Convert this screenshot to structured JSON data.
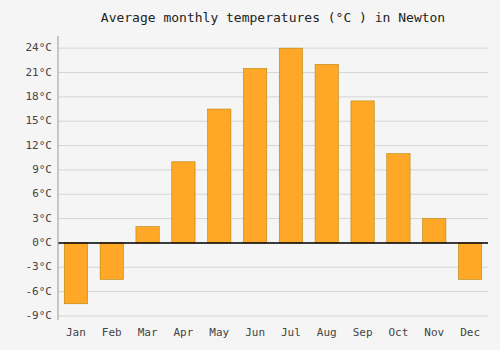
{
  "chart_data": {
    "type": "bar",
    "title": "Average monthly temperatures (°C ) in Newton",
    "categories": [
      "Jan",
      "Feb",
      "Mar",
      "Apr",
      "May",
      "Jun",
      "Jul",
      "Aug",
      "Sep",
      "Oct",
      "Nov",
      "Dec"
    ],
    "values": [
      -7.5,
      -4.5,
      2.0,
      10.0,
      16.5,
      21.5,
      24.0,
      22.0,
      17.5,
      11.0,
      3.0,
      -4.5
    ],
    "color": "#FFA726",
    "ylim": [
      -9.5,
      25.5
    ],
    "yticks": [
      {
        "value": -9,
        "label": "-9°C"
      },
      {
        "value": -6,
        "label": "-6°C"
      },
      {
        "value": -3,
        "label": "-3°C"
      },
      {
        "value": 0,
        "label": "0°C"
      },
      {
        "value": 3,
        "label": "3°C"
      },
      {
        "value": 6,
        "label": "6°C"
      },
      {
        "value": 9,
        "label": "9°C"
      },
      {
        "value": 12,
        "label": "12°C"
      },
      {
        "value": 15,
        "label": "15°C"
      },
      {
        "value": 18,
        "label": "18°C"
      },
      {
        "value": 21,
        "label": "21°C"
      },
      {
        "value": 24,
        "label": "24°C"
      }
    ],
    "grid": true
  }
}
